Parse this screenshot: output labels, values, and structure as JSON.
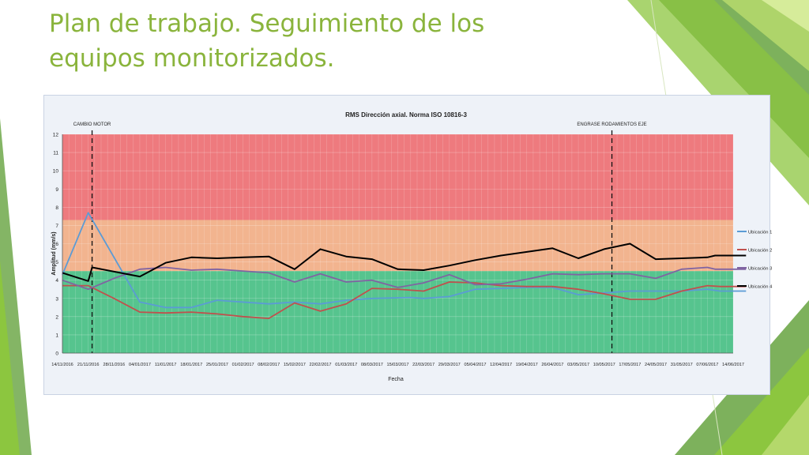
{
  "slide": {
    "title_line1": "Plan de trabajo. Seguimiento de los",
    "title_line2": "equipos monitorizados."
  },
  "colors": {
    "title": "#8ab43c",
    "zone_red": "#ee7a7e",
    "zone_orange": "#f2b48f",
    "zone_green": "#56c48e",
    "series": [
      "#5b9bd5",
      "#c0504d",
      "#8064a2",
      "#000000"
    ]
  },
  "chart_data": {
    "type": "line",
    "title": "RMS Dirección axial. Norma ISO 10816-3",
    "xlabel": "Fecha",
    "ylabel": "Amplitud (mm/s)",
    "ylim": [
      0,
      12
    ],
    "yticks": [
      0,
      1,
      2,
      3,
      4,
      5,
      6,
      7,
      8,
      9,
      10,
      11,
      12
    ],
    "grid": true,
    "legend_position": "right",
    "x_tick_labels": [
      "14/11/2016",
      "21/11/2016",
      "28/11/2016",
      "04/01/2017",
      "11/01/2017",
      "18/01/2017",
      "25/01/2017",
      "01/02/2017",
      "08/02/2017",
      "15/02/2017",
      "22/02/2017",
      "01/03/2017",
      "08/03/2017",
      "15/03/2017",
      "22/03/2017",
      "29/03/2017",
      "05/04/2017",
      "12/04/2017",
      "19/04/2017",
      "26/04/2017",
      "03/05/2017",
      "10/05/2017",
      "17/05/2017",
      "24/05/2017",
      "31/05/2017",
      "07/06/2017",
      "14/06/2017"
    ],
    "zones": [
      {
        "from": 0,
        "to": 4.5,
        "color": "#56c48e"
      },
      {
        "from": 4.5,
        "to": 7.3,
        "color": "#f2b48f"
      },
      {
        "from": 7.3,
        "to": 12,
        "color": "#ee7a7e"
      }
    ],
    "annotations": [
      {
        "label": "CAMBIO MOTOR",
        "x": 1.15
      },
      {
        "label": "ENGRASE RODAMIENTOS EJE",
        "x": 21.3
      }
    ],
    "series": [
      {
        "name": "Ubicación 1",
        "color": "#5b9bd5",
        "x": [
          0,
          1,
          3,
          4,
          5,
          6,
          8,
          9,
          10,
          11,
          12,
          13.5,
          14,
          15,
          16,
          17,
          18,
          19,
          20,
          21,
          22,
          23,
          24,
          25,
          25.5,
          26.5
        ],
        "y": [
          4.3,
          7.7,
          2.8,
          2.5,
          2.5,
          2.9,
          2.7,
          2.8,
          2.7,
          2.9,
          3.0,
          3.05,
          3.0,
          3.1,
          3.5,
          3.55,
          3.6,
          3.6,
          3.2,
          3.3,
          3.4,
          3.4,
          3.4,
          3.5,
          3.4,
          3.4
        ]
      },
      {
        "name": "Ubicación 2",
        "color": "#c0504d",
        "x": [
          0,
          1,
          2,
          3,
          4,
          5,
          6,
          7,
          8,
          9,
          10,
          11,
          12,
          13,
          14,
          15,
          16,
          17,
          18,
          19,
          20,
          21,
          22,
          23,
          24,
          25,
          25.5,
          26.5
        ],
        "y": [
          3.7,
          3.7,
          3.0,
          2.25,
          2.2,
          2.25,
          2.15,
          2.0,
          1.9,
          2.75,
          2.3,
          2.7,
          3.55,
          3.5,
          3.4,
          3.9,
          3.85,
          3.7,
          3.65,
          3.65,
          3.5,
          3.25,
          2.95,
          2.95,
          3.4,
          3.7,
          3.65,
          3.65
        ]
      },
      {
        "name": "Ubicación 3",
        "color": "#8064a2",
        "x": [
          0,
          1,
          2,
          3,
          4,
          5,
          6,
          7,
          8,
          9,
          10,
          11,
          12,
          13,
          14,
          15,
          16,
          17,
          18,
          19,
          20,
          21,
          22,
          23,
          24,
          25,
          25.3,
          26.5
        ],
        "y": [
          4.0,
          3.5,
          4.1,
          4.6,
          4.7,
          4.55,
          4.6,
          4.5,
          4.4,
          3.9,
          4.35,
          3.9,
          4.0,
          3.6,
          3.85,
          4.3,
          3.75,
          3.8,
          4.05,
          4.35,
          4.3,
          4.35,
          4.35,
          4.1,
          4.6,
          4.7,
          4.6,
          4.6
        ]
      },
      {
        "name": "Ubicación 4",
        "color": "#000000",
        "x": [
          0,
          1,
          1.15,
          3,
          4,
          5,
          6,
          7,
          8,
          9,
          10,
          11,
          12,
          13,
          14,
          15,
          16,
          17,
          18,
          19,
          20,
          21,
          22,
          23,
          24,
          25,
          25.3,
          26.5
        ],
        "y": [
          4.4,
          3.95,
          4.7,
          4.2,
          4.95,
          5.25,
          5.2,
          5.25,
          5.3,
          4.6,
          5.7,
          5.3,
          5.15,
          4.6,
          4.55,
          4.8,
          5.1,
          5.35,
          5.55,
          5.75,
          5.2,
          5.7,
          6.0,
          5.15,
          5.2,
          5.25,
          5.35,
          5.35
        ]
      }
    ]
  }
}
